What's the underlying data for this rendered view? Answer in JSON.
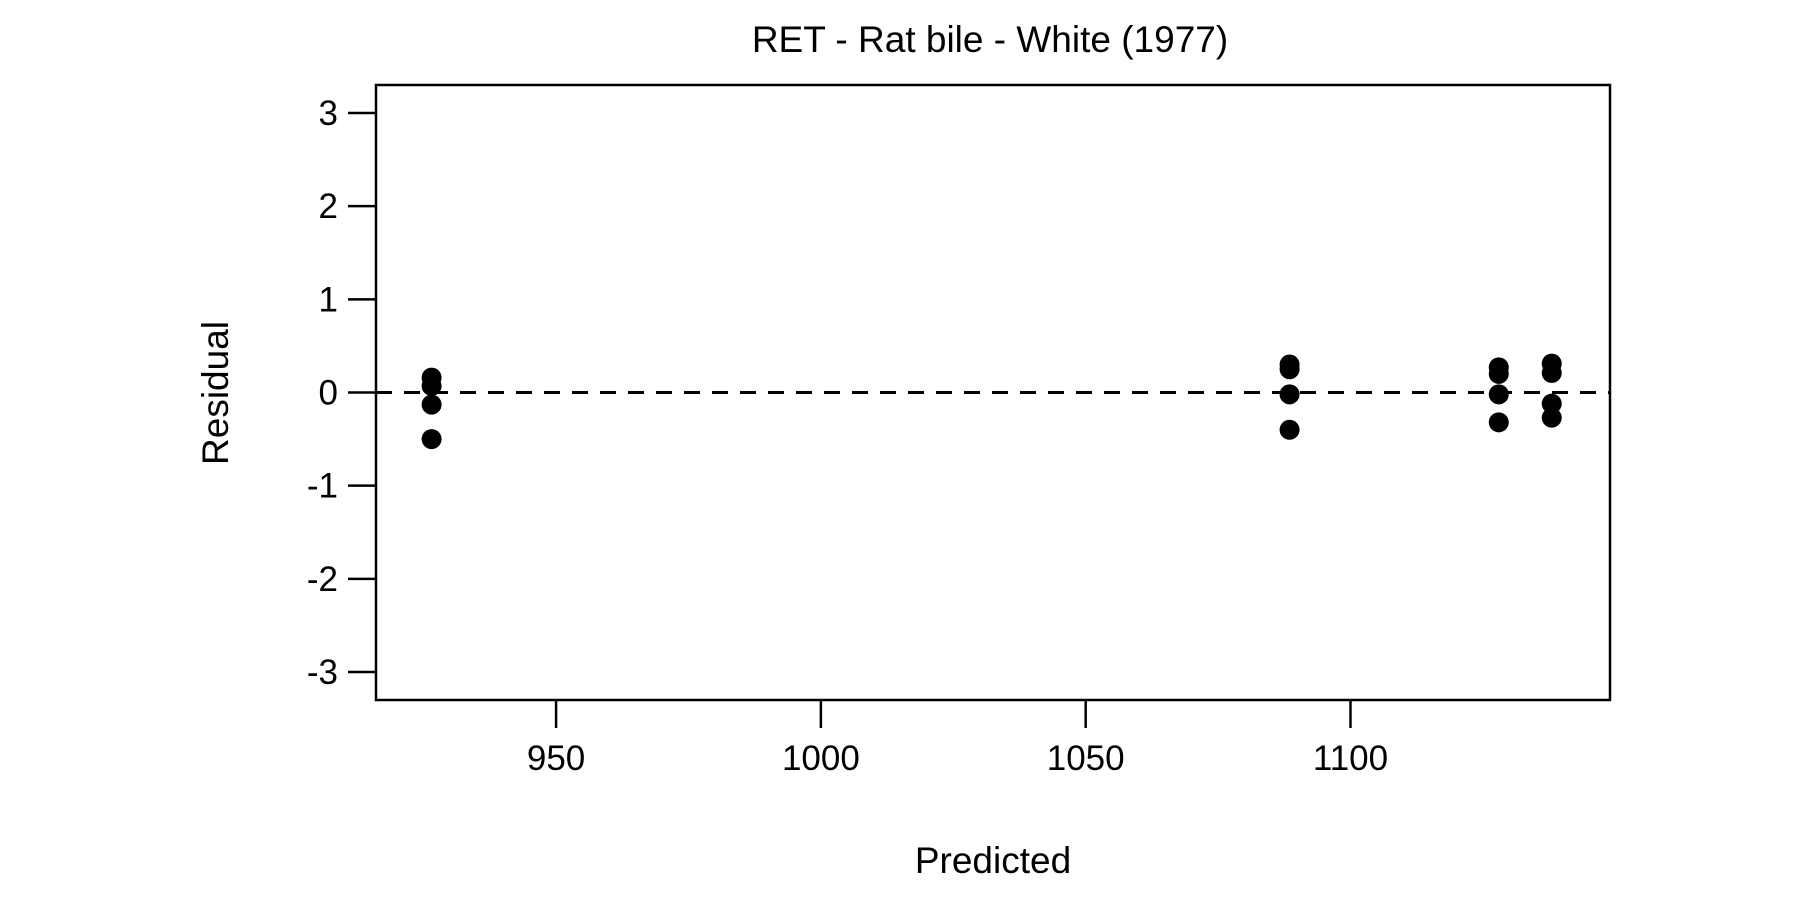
{
  "chart_data": {
    "type": "scatter",
    "title": "RET - Rat bile - White (1977)",
    "xlabel": "Predicted",
    "ylabel": "Residual",
    "xlim": [
      916,
      1149
    ],
    "ylim": [
      -3.3,
      3.3
    ],
    "x_ticks": [
      950,
      1000,
      1050,
      1100
    ],
    "x_tick_labels": [
      "950",
      "1000",
      "1050",
      "1100"
    ],
    "y_ticks": [
      3,
      2,
      1,
      0,
      -1,
      -2,
      -3
    ],
    "y_tick_labels": [
      "3",
      "2",
      "1",
      "0",
      "-1",
      "-2",
      "-3"
    ],
    "reference_line": {
      "y": 0,
      "style": "dashed"
    },
    "grid": false,
    "marker_color": "#000000",
    "points": [
      {
        "x": 926.5,
        "y": 0.16
      },
      {
        "x": 926.5,
        "y": 0.07
      },
      {
        "x": 926.5,
        "y": -0.13
      },
      {
        "x": 926.5,
        "y": -0.5
      },
      {
        "x": 1088.5,
        "y": 0.3
      },
      {
        "x": 1088.5,
        "y": 0.25
      },
      {
        "x": 1088.5,
        "y": -0.02
      },
      {
        "x": 1088.5,
        "y": -0.4
      },
      {
        "x": 1128.0,
        "y": 0.27
      },
      {
        "x": 1128.0,
        "y": 0.2
      },
      {
        "x": 1128.0,
        "y": -0.02
      },
      {
        "x": 1128.0,
        "y": -0.32
      },
      {
        "x": 1138.0,
        "y": 0.31
      },
      {
        "x": 1138.0,
        "y": 0.21
      },
      {
        "x": 1138.0,
        "y": -0.12
      },
      {
        "x": 1138.0,
        "y": -0.27
      }
    ]
  }
}
